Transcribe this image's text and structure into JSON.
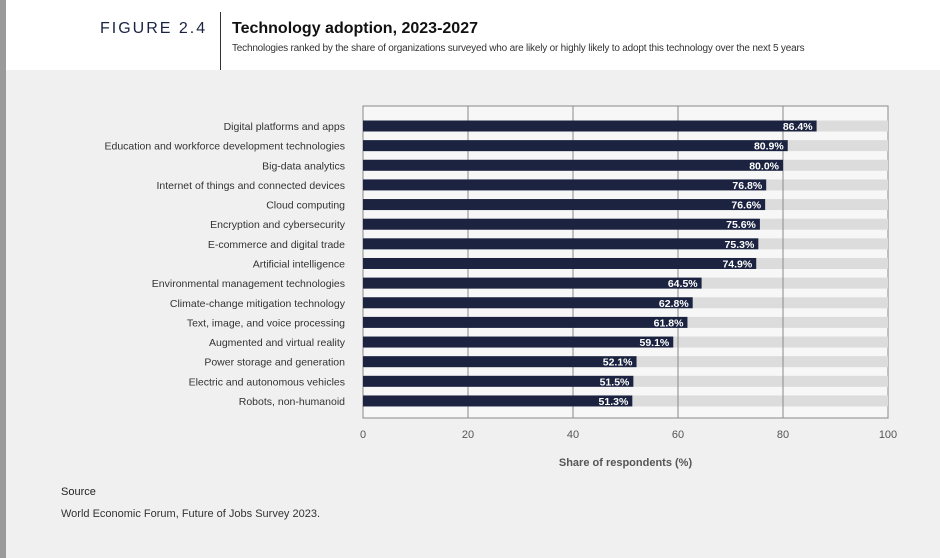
{
  "figure_label": "FIGURE 2.4",
  "title": "Technology adoption, 2023-2027",
  "subtitle": "Technologies ranked by the share of organizations surveyed who are likely or highly likely to adopt this technology over the next 5 years",
  "source_heading": "Source",
  "source_text": "World Economic Forum, Future of Jobs Survey 2023.",
  "colors": {
    "bar": "#1b2341",
    "track": "#dcdcdc",
    "plot_bg": "#f7f7f7",
    "grid": "#8a8a8a",
    "label": "#ffffff"
  },
  "chart_data": {
    "type": "bar",
    "orientation": "horizontal",
    "categories": [
      "Digital platforms and apps",
      "Education and workforce development technologies",
      "Big-data analytics",
      "Internet of things and connected devices",
      "Cloud computing",
      "Encryption and cybersecurity",
      "E-commerce and digital trade",
      "Artificial intelligence",
      "Environmental management technologies",
      "Climate-change mitigation technology",
      "Text, image, and voice processing",
      "Augmented and virtual reality",
      "Power storage and generation",
      "Electric and autonomous vehicles",
      "Robots, non-humanoid"
    ],
    "values": [
      86.4,
      80.9,
      80.0,
      76.8,
      76.6,
      75.6,
      75.3,
      74.9,
      64.5,
      62.8,
      61.8,
      59.1,
      52.1,
      51.5,
      51.3
    ],
    "value_labels": [
      "86.4%",
      "80.9%",
      "80.0%",
      "76.8%",
      "76.6%",
      "75.6%",
      "75.3%",
      "74.9%",
      "64.5%",
      "62.8%",
      "61.8%",
      "59.1%",
      "52.1%",
      "51.5%",
      "51.3%"
    ],
    "xlabel": "Share of respondents (%)",
    "xlim": [
      0,
      100
    ],
    "xticks": [
      0,
      20,
      40,
      60,
      80,
      100
    ],
    "xtick_labels": [
      "0",
      "20",
      "40",
      "60",
      "80",
      "100"
    ],
    "grid": true,
    "legend": "none"
  }
}
